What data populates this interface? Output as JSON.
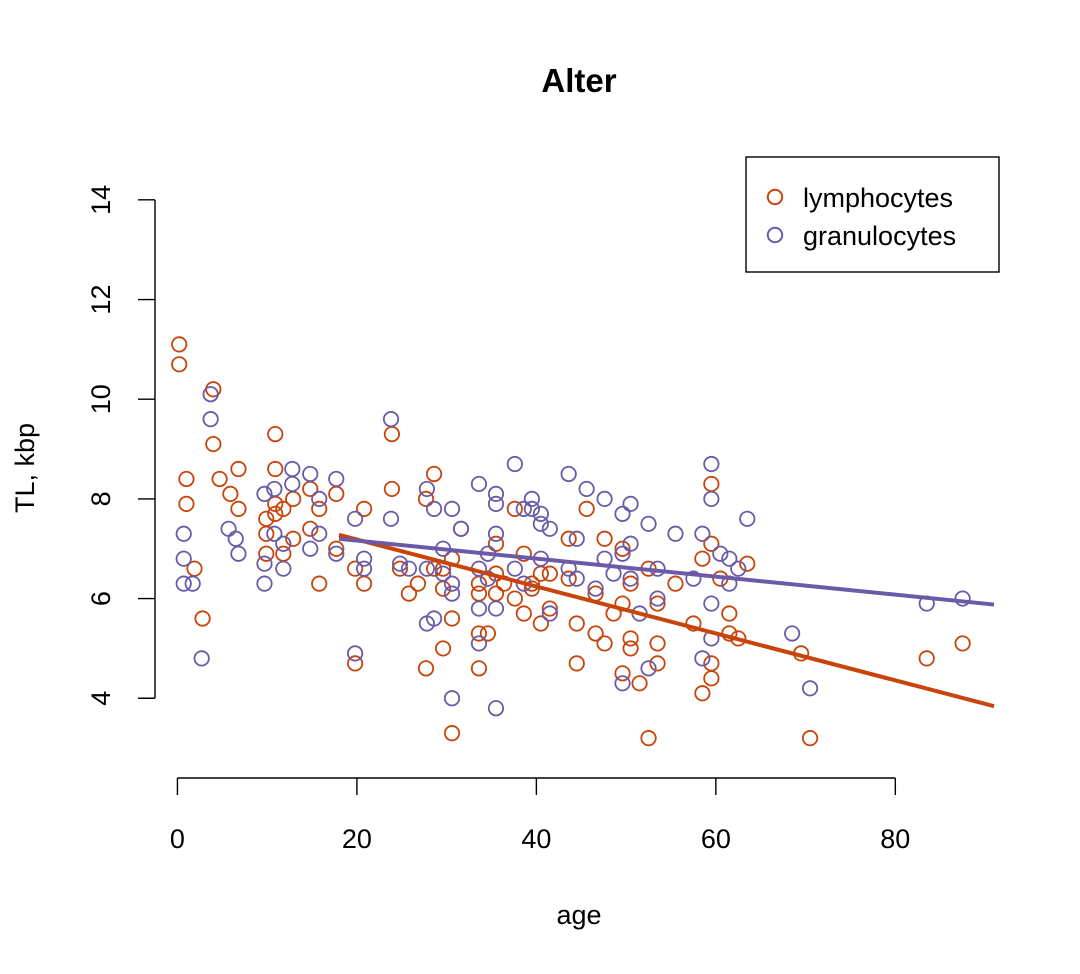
{
  "chart_data": {
    "type": "scatter",
    "title": "Alter",
    "xlabel": "age",
    "ylabel": "TL, kbp",
    "xlim": [
      -2.5,
      92
    ],
    "ylim": [
      2.4,
      14.9
    ],
    "x_ticks": [
      0,
      20,
      40,
      60,
      80
    ],
    "y_ticks": [
      4,
      6,
      8,
      10,
      12,
      14
    ],
    "grid": false,
    "legend_position": "top-right",
    "series": [
      {
        "name": "lymphocytes",
        "color": "#C8440A",
        "marker": "open-circle",
        "points": [
          [
            0.2,
            11.1
          ],
          [
            0.2,
            10.7
          ],
          [
            1.0,
            8.4
          ],
          [
            1.0,
            7.9
          ],
          [
            1.9,
            6.6
          ],
          [
            2.8,
            5.6
          ],
          [
            4.0,
            10.2
          ],
          [
            4.0,
            9.1
          ],
          [
            4.7,
            8.4
          ],
          [
            5.9,
            8.1
          ],
          [
            6.8,
            7.8
          ],
          [
            6.8,
            8.6
          ],
          [
            9.9,
            7.6
          ],
          [
            9.9,
            6.9
          ],
          [
            9.9,
            7.3
          ],
          [
            10.9,
            9.3
          ],
          [
            10.9,
            8.6
          ],
          [
            10.9,
            7.9
          ],
          [
            10.9,
            7.7
          ],
          [
            11.8,
            7.8
          ],
          [
            11.8,
            6.9
          ],
          [
            12.9,
            8.0
          ],
          [
            12.9,
            7.2
          ],
          [
            14.8,
            8.2
          ],
          [
            14.8,
            7.4
          ],
          [
            15.8,
            7.8
          ],
          [
            15.8,
            6.3
          ],
          [
            17.7,
            8.1
          ],
          [
            17.7,
            7.0
          ],
          [
            19.8,
            6.6
          ],
          [
            19.8,
            4.7
          ],
          [
            20.8,
            6.3
          ],
          [
            20.8,
            7.8
          ],
          [
            23.9,
            9.3
          ],
          [
            23.9,
            8.2
          ],
          [
            24.8,
            6.6
          ],
          [
            25.8,
            6.1
          ],
          [
            26.8,
            6.3
          ],
          [
            27.7,
            8.0
          ],
          [
            27.7,
            4.6
          ],
          [
            28.6,
            8.5
          ],
          [
            28.6,
            6.6
          ],
          [
            29.6,
            6.2
          ],
          [
            29.6,
            6.6
          ],
          [
            29.6,
            5.0
          ],
          [
            30.6,
            6.8
          ],
          [
            30.6,
            5.6
          ],
          [
            30.6,
            3.3
          ],
          [
            31.6,
            7.4
          ],
          [
            33.6,
            6.3
          ],
          [
            33.6,
            6.1
          ],
          [
            33.6,
            5.3
          ],
          [
            33.6,
            4.6
          ],
          [
            34.6,
            5.3
          ],
          [
            35.5,
            7.1
          ],
          [
            35.5,
            6.5
          ],
          [
            35.5,
            6.1
          ],
          [
            36.4,
            6.3
          ],
          [
            37.6,
            7.8
          ],
          [
            37.6,
            6.0
          ],
          [
            38.6,
            6.9
          ],
          [
            38.6,
            5.7
          ],
          [
            39.5,
            6.3
          ],
          [
            39.5,
            6.2
          ],
          [
            40.5,
            6.5
          ],
          [
            40.5,
            5.5
          ],
          [
            41.5,
            6.5
          ],
          [
            41.5,
            5.8
          ],
          [
            43.6,
            7.2
          ],
          [
            43.6,
            6.4
          ],
          [
            44.5,
            5.5
          ],
          [
            44.5,
            4.7
          ],
          [
            45.6,
            7.8
          ],
          [
            46.6,
            6.1
          ],
          [
            46.6,
            5.3
          ],
          [
            47.6,
            7.2
          ],
          [
            47.6,
            5.1
          ],
          [
            48.6,
            5.7
          ],
          [
            49.6,
            7.0
          ],
          [
            49.6,
            5.9
          ],
          [
            49.6,
            4.5
          ],
          [
            50.5,
            6.3
          ],
          [
            50.5,
            5.2
          ],
          [
            50.5,
            5.0
          ],
          [
            51.5,
            4.3
          ],
          [
            52.5,
            6.6
          ],
          [
            52.5,
            3.2
          ],
          [
            53.5,
            5.9
          ],
          [
            53.5,
            5.1
          ],
          [
            53.5,
            4.7
          ],
          [
            55.5,
            6.3
          ],
          [
            57.5,
            5.5
          ],
          [
            58.5,
            6.8
          ],
          [
            58.5,
            4.1
          ],
          [
            59.5,
            8.3
          ],
          [
            59.5,
            7.1
          ],
          [
            59.5,
            4.7
          ],
          [
            59.5,
            4.4
          ],
          [
            60.5,
            6.4
          ],
          [
            61.5,
            5.3
          ],
          [
            61.5,
            5.7
          ],
          [
            62.5,
            5.2
          ],
          [
            63.5,
            6.7
          ],
          [
            69.5,
            4.9
          ],
          [
            70.5,
            3.2
          ],
          [
            83.5,
            4.8
          ],
          [
            87.5,
            5.1
          ]
        ]
      },
      {
        "name": "granulocytes",
        "color": "#6A5AA8",
        "marker": "open-circle",
        "points": [
          [
            0.7,
            7.3
          ],
          [
            0.7,
            6.8
          ],
          [
            0.7,
            6.3
          ],
          [
            1.7,
            6.3
          ],
          [
            2.7,
            4.8
          ],
          [
            3.7,
            10.1
          ],
          [
            3.7,
            9.6
          ],
          [
            5.7,
            7.4
          ],
          [
            6.5,
            7.2
          ],
          [
            6.8,
            6.9
          ],
          [
            9.7,
            8.1
          ],
          [
            9.7,
            6.7
          ],
          [
            9.7,
            6.3
          ],
          [
            10.8,
            8.2
          ],
          [
            10.8,
            7.3
          ],
          [
            11.8,
            7.1
          ],
          [
            11.8,
            6.6
          ],
          [
            12.8,
            8.6
          ],
          [
            12.8,
            8.3
          ],
          [
            14.8,
            8.5
          ],
          [
            14.8,
            7.0
          ],
          [
            15.8,
            8.0
          ],
          [
            15.8,
            7.3
          ],
          [
            17.7,
            8.4
          ],
          [
            17.7,
            6.9
          ],
          [
            19.8,
            7.6
          ],
          [
            19.8,
            4.9
          ],
          [
            20.8,
            6.8
          ],
          [
            20.8,
            6.6
          ],
          [
            23.8,
            9.6
          ],
          [
            23.8,
            7.6
          ],
          [
            24.8,
            6.7
          ],
          [
            25.8,
            6.6
          ],
          [
            27.8,
            8.2
          ],
          [
            27.8,
            6.6
          ],
          [
            27.8,
            5.5
          ],
          [
            28.6,
            7.8
          ],
          [
            28.6,
            5.6
          ],
          [
            29.6,
            7.0
          ],
          [
            29.6,
            6.5
          ],
          [
            30.6,
            7.8
          ],
          [
            30.6,
            6.3
          ],
          [
            30.6,
            6.1
          ],
          [
            30.6,
            4.0
          ],
          [
            31.6,
            7.4
          ],
          [
            33.6,
            8.3
          ],
          [
            33.6,
            6.6
          ],
          [
            33.6,
            5.8
          ],
          [
            33.6,
            5.1
          ],
          [
            34.6,
            6.9
          ],
          [
            34.6,
            6.4
          ],
          [
            35.5,
            8.1
          ],
          [
            35.5,
            7.9
          ],
          [
            35.5,
            7.3
          ],
          [
            35.5,
            5.8
          ],
          [
            35.5,
            3.8
          ],
          [
            37.6,
            8.7
          ],
          [
            37.6,
            6.6
          ],
          [
            38.6,
            7.8
          ],
          [
            38.6,
            6.3
          ],
          [
            39.5,
            8.0
          ],
          [
            39.5,
            7.8
          ],
          [
            40.5,
            7.7
          ],
          [
            40.5,
            7.5
          ],
          [
            40.5,
            6.8
          ],
          [
            41.5,
            7.4
          ],
          [
            41.5,
            5.7
          ],
          [
            43.6,
            8.5
          ],
          [
            43.6,
            6.6
          ],
          [
            44.5,
            7.2
          ],
          [
            44.5,
            6.4
          ],
          [
            45.6,
            8.2
          ],
          [
            46.6,
            6.2
          ],
          [
            47.6,
            8.0
          ],
          [
            47.6,
            6.8
          ],
          [
            48.6,
            6.5
          ],
          [
            49.6,
            7.7
          ],
          [
            49.6,
            6.9
          ],
          [
            49.6,
            4.3
          ],
          [
            50.5,
            7.9
          ],
          [
            50.5,
            7.1
          ],
          [
            50.5,
            6.4
          ],
          [
            51.5,
            5.7
          ],
          [
            52.5,
            7.5
          ],
          [
            52.5,
            4.6
          ],
          [
            53.5,
            6.6
          ],
          [
            53.5,
            6.0
          ],
          [
            55.5,
            7.3
          ],
          [
            57.5,
            6.4
          ],
          [
            58.5,
            7.3
          ],
          [
            58.5,
            4.8
          ],
          [
            59.5,
            8.7
          ],
          [
            59.5,
            8.0
          ],
          [
            59.5,
            5.9
          ],
          [
            59.5,
            5.2
          ],
          [
            60.5,
            6.9
          ],
          [
            61.5,
            6.8
          ],
          [
            61.5,
            6.3
          ],
          [
            62.5,
            6.6
          ],
          [
            63.5,
            7.6
          ],
          [
            68.5,
            5.3
          ],
          [
            70.5,
            4.2
          ],
          [
            83.5,
            5.9
          ],
          [
            87.5,
            6.0
          ]
        ]
      }
    ],
    "trendlines": [
      {
        "series": "lymphocytes",
        "x": [
          18,
          91
        ],
        "y": [
          7.28,
          3.84
        ],
        "color": "#C8440A"
      },
      {
        "series": "granulocytes",
        "x": [
          18,
          91
        ],
        "y": [
          7.2,
          5.88
        ],
        "color": "#6A5AA8"
      }
    ]
  }
}
